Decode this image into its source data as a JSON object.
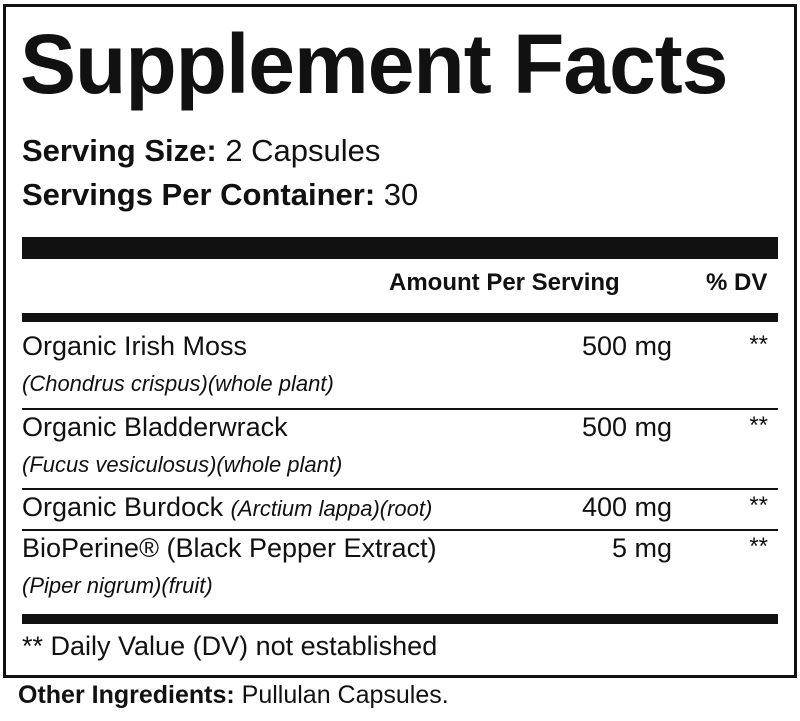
{
  "title": "Supplement Facts",
  "serving_size": {
    "label": "Serving Size:",
    "value": "2 Capsules"
  },
  "servings_per_container": {
    "label": "Servings Per Container:",
    "value": "30"
  },
  "columns": {
    "amount": "Amount Per Serving",
    "dv": "% DV"
  },
  "ingredients": [
    {
      "name": "Organic Irish Moss",
      "source": "(Chondrus crispus)(whole plant)",
      "amount": "500 mg",
      "dv": "**"
    },
    {
      "name": "Organic Bladderwrack",
      "source": "(Fucus vesiculosus)(whole plant)",
      "amount": "500 mg",
      "dv": "**"
    },
    {
      "name": "Organic Burdock",
      "source": "(Arctium lappa)(root)",
      "amount": "400 mg",
      "dv": "**"
    },
    {
      "name": "BioPerine® (Black Pepper Extract)",
      "source": "(Piper nigrum)(fruit)",
      "amount": "5 mg",
      "dv": "**"
    }
  ],
  "footnote": "** Daily Value (DV) not established",
  "other_ingredients": {
    "label": "Other Ingredients:",
    "value": "Pullulan Capsules."
  }
}
